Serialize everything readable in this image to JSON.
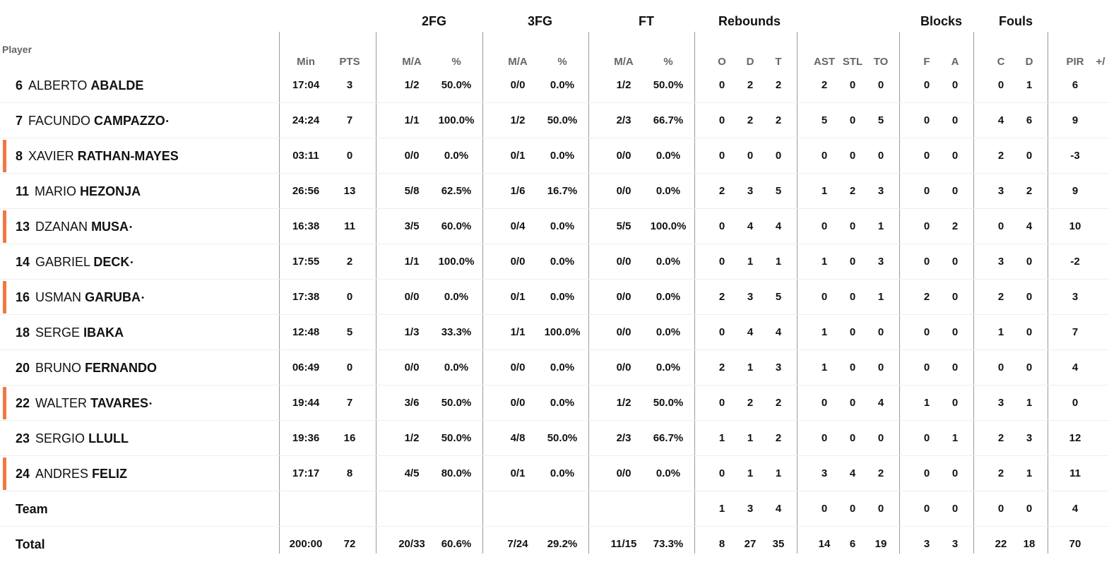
{
  "table": {
    "player_label": "Player",
    "groups": {
      "fg2": "2FG",
      "fg3": "3FG",
      "ft": "FT",
      "reb": "Rebounds",
      "blk": "Blocks",
      "fouls": "Fouls"
    },
    "headers": {
      "min": "Min",
      "pts": "PTS",
      "fg2_ma": "M/A",
      "fg2_pct": "%",
      "fg3_ma": "M/A",
      "fg3_pct": "%",
      "ft_ma": "M/A",
      "ft_pct": "%",
      "reb_o": "O",
      "reb_d": "D",
      "reb_t": "T",
      "ast": "AST",
      "stl": "STL",
      "to": "TO",
      "blk_f": "F",
      "blk_a": "A",
      "foul_c": "C",
      "foul_d": "D",
      "pir": "PIR",
      "pm": "+/"
    },
    "accent_color": "#f07840",
    "rows": [
      {
        "num": "6",
        "first": "ALBERTO",
        "last": "ABALDE",
        "star": "",
        "min": "17:04",
        "pts": "3",
        "fg2_ma": "1/2",
        "fg2_pct": "50.0%",
        "fg3_ma": "0/0",
        "fg3_pct": "0.0%",
        "ft_ma": "1/2",
        "ft_pct": "50.0%",
        "reb_o": "0",
        "reb_d": "2",
        "reb_t": "2",
        "ast": "2",
        "stl": "0",
        "to": "0",
        "blk_f": "0",
        "blk_a": "0",
        "foul_c": "0",
        "foul_d": "1",
        "pir": "6",
        "marked": false
      },
      {
        "num": "7",
        "first": "FACUNDO",
        "last": "CAMPAZZO",
        "star": "•",
        "min": "24:24",
        "pts": "7",
        "fg2_ma": "1/1",
        "fg2_pct": "100.0%",
        "fg3_ma": "1/2",
        "fg3_pct": "50.0%",
        "ft_ma": "2/3",
        "ft_pct": "66.7%",
        "reb_o": "0",
        "reb_d": "2",
        "reb_t": "2",
        "ast": "5",
        "stl": "0",
        "to": "5",
        "blk_f": "0",
        "blk_a": "0",
        "foul_c": "4",
        "foul_d": "6",
        "pir": "9",
        "marked": false
      },
      {
        "num": "8",
        "first": "XAVIER",
        "last": "RATHAN-MAYES",
        "star": "",
        "min": "03:11",
        "pts": "0",
        "fg2_ma": "0/0",
        "fg2_pct": "0.0%",
        "fg3_ma": "0/1",
        "fg3_pct": "0.0%",
        "ft_ma": "0/0",
        "ft_pct": "0.0%",
        "reb_o": "0",
        "reb_d": "0",
        "reb_t": "0",
        "ast": "0",
        "stl": "0",
        "to": "0",
        "blk_f": "0",
        "blk_a": "0",
        "foul_c": "2",
        "foul_d": "0",
        "pir": "-3",
        "marked": true
      },
      {
        "num": "11",
        "first": "MARIO",
        "last": "HEZONJA",
        "star": "",
        "min": "26:56",
        "pts": "13",
        "fg2_ma": "5/8",
        "fg2_pct": "62.5%",
        "fg3_ma": "1/6",
        "fg3_pct": "16.7%",
        "ft_ma": "0/0",
        "ft_pct": "0.0%",
        "reb_o": "2",
        "reb_d": "3",
        "reb_t": "5",
        "ast": "1",
        "stl": "2",
        "to": "3",
        "blk_f": "0",
        "blk_a": "0",
        "foul_c": "3",
        "foul_d": "2",
        "pir": "9",
        "marked": false
      },
      {
        "num": "13",
        "first": "DZANAN",
        "last": "MUSA",
        "star": "•",
        "min": "16:38",
        "pts": "11",
        "fg2_ma": "3/5",
        "fg2_pct": "60.0%",
        "fg3_ma": "0/4",
        "fg3_pct": "0.0%",
        "ft_ma": "5/5",
        "ft_pct": "100.0%",
        "reb_o": "0",
        "reb_d": "4",
        "reb_t": "4",
        "ast": "0",
        "stl": "0",
        "to": "1",
        "blk_f": "0",
        "blk_a": "2",
        "foul_c": "0",
        "foul_d": "4",
        "pir": "10",
        "marked": true
      },
      {
        "num": "14",
        "first": "GABRIEL",
        "last": "DECK",
        "star": "•",
        "min": "17:55",
        "pts": "2",
        "fg2_ma": "1/1",
        "fg2_pct": "100.0%",
        "fg3_ma": "0/0",
        "fg3_pct": "0.0%",
        "ft_ma": "0/0",
        "ft_pct": "0.0%",
        "reb_o": "0",
        "reb_d": "1",
        "reb_t": "1",
        "ast": "1",
        "stl": "0",
        "to": "3",
        "blk_f": "0",
        "blk_a": "0",
        "foul_c": "3",
        "foul_d": "0",
        "pir": "-2",
        "marked": false
      },
      {
        "num": "16",
        "first": "USMAN",
        "last": "GARUBA",
        "star": "•",
        "min": "17:38",
        "pts": "0",
        "fg2_ma": "0/0",
        "fg2_pct": "0.0%",
        "fg3_ma": "0/1",
        "fg3_pct": "0.0%",
        "ft_ma": "0/0",
        "ft_pct": "0.0%",
        "reb_o": "2",
        "reb_d": "3",
        "reb_t": "5",
        "ast": "0",
        "stl": "0",
        "to": "1",
        "blk_f": "2",
        "blk_a": "0",
        "foul_c": "2",
        "foul_d": "0",
        "pir": "3",
        "marked": true
      },
      {
        "num": "18",
        "first": "SERGE",
        "last": "IBAKA",
        "star": "",
        "min": "12:48",
        "pts": "5",
        "fg2_ma": "1/3",
        "fg2_pct": "33.3%",
        "fg3_ma": "1/1",
        "fg3_pct": "100.0%",
        "ft_ma": "0/0",
        "ft_pct": "0.0%",
        "reb_o": "0",
        "reb_d": "4",
        "reb_t": "4",
        "ast": "1",
        "stl": "0",
        "to": "0",
        "blk_f": "0",
        "blk_a": "0",
        "foul_c": "1",
        "foul_d": "0",
        "pir": "7",
        "marked": false
      },
      {
        "num": "20",
        "first": "BRUNO",
        "last": "FERNANDO",
        "star": "",
        "min": "06:49",
        "pts": "0",
        "fg2_ma": "0/0",
        "fg2_pct": "0.0%",
        "fg3_ma": "0/0",
        "fg3_pct": "0.0%",
        "ft_ma": "0/0",
        "ft_pct": "0.0%",
        "reb_o": "2",
        "reb_d": "1",
        "reb_t": "3",
        "ast": "1",
        "stl": "0",
        "to": "0",
        "blk_f": "0",
        "blk_a": "0",
        "foul_c": "0",
        "foul_d": "0",
        "pir": "4",
        "marked": false
      },
      {
        "num": "22",
        "first": "WALTER",
        "last": "TAVARES",
        "star": "•",
        "min": "19:44",
        "pts": "7",
        "fg2_ma": "3/6",
        "fg2_pct": "50.0%",
        "fg3_ma": "0/0",
        "fg3_pct": "0.0%",
        "ft_ma": "1/2",
        "ft_pct": "50.0%",
        "reb_o": "0",
        "reb_d": "2",
        "reb_t": "2",
        "ast": "0",
        "stl": "0",
        "to": "4",
        "blk_f": "1",
        "blk_a": "0",
        "foul_c": "3",
        "foul_d": "1",
        "pir": "0",
        "marked": true
      },
      {
        "num": "23",
        "first": "SERGIO",
        "last": "LLULL",
        "star": "",
        "min": "19:36",
        "pts": "16",
        "fg2_ma": "1/2",
        "fg2_pct": "50.0%",
        "fg3_ma": "4/8",
        "fg3_pct": "50.0%",
        "ft_ma": "2/3",
        "ft_pct": "66.7%",
        "reb_o": "1",
        "reb_d": "1",
        "reb_t": "2",
        "ast": "0",
        "stl": "0",
        "to": "0",
        "blk_f": "0",
        "blk_a": "1",
        "foul_c": "2",
        "foul_d": "3",
        "pir": "12",
        "marked": false
      },
      {
        "num": "24",
        "first": "ANDRES",
        "last": "FELIZ",
        "star": "",
        "min": "17:17",
        "pts": "8",
        "fg2_ma": "4/5",
        "fg2_pct": "80.0%",
        "fg3_ma": "0/1",
        "fg3_pct": "0.0%",
        "ft_ma": "0/0",
        "ft_pct": "0.0%",
        "reb_o": "0",
        "reb_d": "1",
        "reb_t": "1",
        "ast": "3",
        "stl": "4",
        "to": "2",
        "blk_f": "0",
        "blk_a": "0",
        "foul_c": "2",
        "foul_d": "1",
        "pir": "11",
        "marked": true
      }
    ],
    "team": {
      "label": "Team",
      "reb_o": "1",
      "reb_d": "3",
      "reb_t": "4",
      "ast": "0",
      "stl": "0",
      "to": "0",
      "blk_f": "0",
      "blk_a": "0",
      "foul_c": "0",
      "foul_d": "0",
      "pir": "4"
    },
    "total": {
      "label": "Total",
      "min": "200:00",
      "pts": "72",
      "fg2_ma": "20/33",
      "fg2_pct": "60.6%",
      "fg3_ma": "7/24",
      "fg3_pct": "29.2%",
      "ft_ma": "11/15",
      "ft_pct": "73.3%",
      "reb_o": "8",
      "reb_d": "27",
      "reb_t": "35",
      "ast": "14",
      "stl": "6",
      "to": "19",
      "blk_f": "3",
      "blk_a": "3",
      "foul_c": "22",
      "foul_d": "18",
      "pir": "70"
    }
  }
}
